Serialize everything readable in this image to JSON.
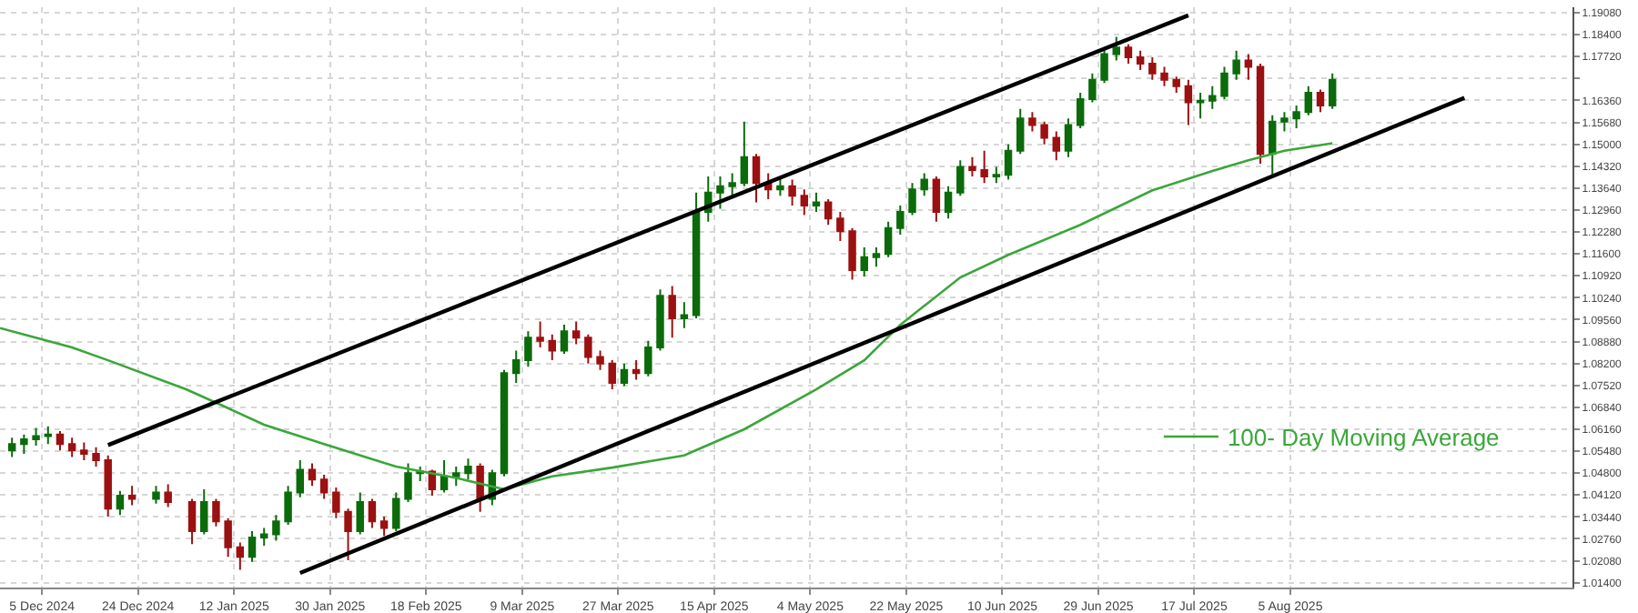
{
  "chart_data": {
    "type": "candlestick",
    "x": [
      "2024-11-29",
      "2024-12-02",
      "2024-12-04",
      "2024-12-06",
      "2024-12-09",
      "2024-12-11",
      "2024-12-13",
      "2024-12-16",
      "2024-12-18",
      "2024-12-20",
      "2024-12-23",
      "2024-12-27",
      "2024-12-30",
      "2025-01-03",
      "2025-01-06",
      "2025-01-08",
      "2025-01-10",
      "2025-01-13",
      "2025-01-15",
      "2025-01-17",
      "2025-01-20",
      "2025-01-22",
      "2025-01-24",
      "2025-01-27",
      "2025-01-29",
      "2025-01-31",
      "2025-02-03",
      "2025-02-05",
      "2025-02-07",
      "2025-02-10",
      "2025-02-12",
      "2025-02-14",
      "2025-02-17",
      "2025-02-19",
      "2025-02-21",
      "2025-02-24",
      "2025-02-26",
      "2025-02-28",
      "2025-03-03",
      "2025-03-05",
      "2025-03-07",
      "2025-03-10",
      "2025-03-12",
      "2025-03-14",
      "2025-03-17",
      "2025-03-19",
      "2025-03-21",
      "2025-03-24",
      "2025-03-26",
      "2025-03-28",
      "2025-03-31",
      "2025-04-02",
      "2025-04-04",
      "2025-04-07",
      "2025-04-09",
      "2025-04-11",
      "2025-04-14",
      "2025-04-16",
      "2025-04-18",
      "2025-04-21",
      "2025-04-23",
      "2025-04-25",
      "2025-04-28",
      "2025-04-30",
      "2025-05-02",
      "2025-05-05",
      "2025-05-07",
      "2025-05-09",
      "2025-05-12",
      "2025-05-14",
      "2025-05-16",
      "2025-05-19",
      "2025-05-21",
      "2025-05-23",
      "2025-05-26",
      "2025-05-28",
      "2025-05-30",
      "2025-06-02",
      "2025-06-04",
      "2025-06-06",
      "2025-06-09",
      "2025-06-11",
      "2025-06-13",
      "2025-06-16",
      "2025-06-18",
      "2025-06-20",
      "2025-06-23",
      "2025-06-25",
      "2025-06-27",
      "2025-06-30",
      "2025-07-02",
      "2025-07-04",
      "2025-07-07",
      "2025-07-09",
      "2025-07-11",
      "2025-07-14",
      "2025-07-16",
      "2025-07-18",
      "2025-07-21",
      "2025-07-23",
      "2025-07-25",
      "2025-07-28",
      "2025-07-30",
      "2025-08-01",
      "2025-08-04",
      "2025-08-06",
      "2025-08-08",
      "2025-08-11",
      "2025-08-13"
    ],
    "ohlc": [
      [
        1.055,
        1.059,
        1.053,
        1.057
      ],
      [
        1.057,
        1.06,
        1.054,
        1.0585
      ],
      [
        1.0585,
        1.062,
        1.0565,
        1.0595
      ],
      [
        1.0595,
        1.0625,
        1.057,
        1.06
      ],
      [
        1.06,
        1.061,
        1.055,
        1.057
      ],
      [
        1.057,
        1.059,
        1.053,
        1.055
      ],
      [
        1.055,
        1.0575,
        1.052,
        1.054
      ],
      [
        1.054,
        1.056,
        1.05,
        1.052
      ],
      [
        1.052,
        1.0535,
        1.0345,
        1.037
      ],
      [
        1.037,
        1.0425,
        1.035,
        1.041
      ],
      [
        1.041,
        1.044,
        1.038,
        1.04
      ],
      [
        1.04,
        1.044,
        1.0385,
        1.042
      ],
      [
        1.042,
        1.0445,
        1.0375,
        1.039
      ],
      [
        1.039,
        1.04,
        1.026,
        1.03
      ],
      [
        1.03,
        1.043,
        1.029,
        1.039
      ],
      [
        1.039,
        1.04,
        1.0315,
        1.033
      ],
      [
        1.033,
        1.034,
        1.022,
        1.025
      ],
      [
        1.025,
        1.0265,
        1.018,
        1.022
      ],
      [
        1.022,
        1.03,
        1.0205,
        1.028
      ],
      [
        1.028,
        1.031,
        1.0255,
        1.029
      ],
      [
        1.029,
        1.035,
        1.027,
        1.033
      ],
      [
        1.033,
        1.044,
        1.032,
        1.042
      ],
      [
        1.042,
        1.052,
        1.0405,
        1.049
      ],
      [
        1.049,
        1.051,
        1.044,
        1.046
      ],
      [
        1.046,
        1.0475,
        1.04,
        1.042
      ],
      [
        1.042,
        1.0435,
        1.034,
        1.036
      ],
      [
        1.036,
        1.037,
        1.021,
        1.03
      ],
      [
        1.03,
        1.042,
        1.029,
        1.039
      ],
      [
        1.039,
        1.04,
        1.031,
        1.033
      ],
      [
        1.033,
        1.0345,
        1.0285,
        1.031
      ],
      [
        1.031,
        1.042,
        1.03,
        1.04
      ],
      [
        1.04,
        1.051,
        1.039,
        1.048
      ],
      [
        1.048,
        1.05,
        1.0455,
        1.0485
      ],
      [
        1.0485,
        1.049,
        1.041,
        1.043
      ],
      [
        1.043,
        1.052,
        1.042,
        1.047
      ],
      [
        1.047,
        1.05,
        1.044,
        1.048
      ],
      [
        1.048,
        1.0525,
        1.046,
        1.05
      ],
      [
        1.05,
        1.051,
        1.036,
        1.04
      ],
      [
        1.04,
        1.049,
        1.038,
        1.048
      ],
      [
        1.048,
        1.08,
        1.047,
        1.079
      ],
      [
        1.079,
        1.086,
        1.076,
        1.083
      ],
      [
        1.083,
        1.092,
        1.081,
        1.09
      ],
      [
        1.09,
        1.095,
        1.087,
        1.089
      ],
      [
        1.089,
        1.091,
        1.083,
        1.086
      ],
      [
        1.086,
        1.094,
        1.085,
        1.092
      ],
      [
        1.092,
        1.095,
        1.088,
        1.09
      ],
      [
        1.09,
        1.091,
        1.082,
        1.084
      ],
      [
        1.084,
        1.086,
        1.08,
        1.082
      ],
      [
        1.082,
        1.083,
        1.074,
        1.076
      ],
      [
        1.076,
        1.082,
        1.075,
        1.08
      ],
      [
        1.08,
        1.083,
        1.077,
        1.079
      ],
      [
        1.079,
        1.089,
        1.078,
        1.087
      ],
      [
        1.087,
        1.105,
        1.086,
        1.103
      ],
      [
        1.103,
        1.106,
        1.09,
        1.096
      ],
      [
        1.096,
        1.101,
        1.093,
        1.097
      ],
      [
        1.097,
        1.135,
        1.096,
        1.129
      ],
      [
        1.129,
        1.14,
        1.126,
        1.135
      ],
      [
        1.135,
        1.14,
        1.13,
        1.137
      ],
      [
        1.137,
        1.141,
        1.134,
        1.138
      ],
      [
        1.138,
        1.157,
        1.137,
        1.146
      ],
      [
        1.146,
        1.147,
        1.132,
        1.138
      ],
      [
        1.138,
        1.141,
        1.133,
        1.136
      ],
      [
        1.136,
        1.14,
        1.134,
        1.137
      ],
      [
        1.137,
        1.139,
        1.131,
        1.134
      ],
      [
        1.134,
        1.136,
        1.128,
        1.131
      ],
      [
        1.131,
        1.135,
        1.129,
        1.132
      ],
      [
        1.132,
        1.133,
        1.125,
        1.127
      ],
      [
        1.127,
        1.129,
        1.12,
        1.123
      ],
      [
        1.123,
        1.124,
        1.108,
        1.111
      ],
      [
        1.111,
        1.118,
        1.109,
        1.115
      ],
      [
        1.115,
        1.118,
        1.112,
        1.116
      ],
      [
        1.116,
        1.126,
        1.115,
        1.124
      ],
      [
        1.124,
        1.131,
        1.122,
        1.129
      ],
      [
        1.129,
        1.138,
        1.128,
        1.136
      ],
      [
        1.136,
        1.141,
        1.134,
        1.139
      ],
      [
        1.139,
        1.14,
        1.126,
        1.129
      ],
      [
        1.129,
        1.137,
        1.127,
        1.135
      ],
      [
        1.135,
        1.145,
        1.134,
        1.143
      ],
      [
        1.143,
        1.146,
        1.14,
        1.142
      ],
      [
        1.142,
        1.148,
        1.138,
        1.14
      ],
      [
        1.14,
        1.143,
        1.138,
        1.1405
      ],
      [
        1.1405,
        1.15,
        1.139,
        1.148
      ],
      [
        1.148,
        1.161,
        1.147,
        1.158
      ],
      [
        1.158,
        1.16,
        1.154,
        1.156
      ],
      [
        1.156,
        1.157,
        1.15,
        1.152
      ],
      [
        1.152,
        1.154,
        1.145,
        1.148
      ],
      [
        1.148,
        1.158,
        1.146,
        1.156
      ],
      [
        1.156,
        1.166,
        1.155,
        1.164
      ],
      [
        1.164,
        1.172,
        1.163,
        1.17
      ],
      [
        1.17,
        1.18,
        1.169,
        1.178
      ],
      [
        1.178,
        1.1833,
        1.176,
        1.18
      ],
      [
        1.18,
        1.181,
        1.175,
        1.177
      ],
      [
        1.177,
        1.179,
        1.173,
        1.175
      ],
      [
        1.175,
        1.177,
        1.17,
        1.172
      ],
      [
        1.172,
        1.174,
        1.168,
        1.17
      ],
      [
        1.17,
        1.171,
        1.166,
        1.168
      ],
      [
        1.168,
        1.17,
        1.156,
        1.163
      ],
      [
        1.163,
        1.166,
        1.158,
        1.1635
      ],
      [
        1.1635,
        1.168,
        1.161,
        1.165
      ],
      [
        1.165,
        1.174,
        1.164,
        1.172
      ],
      [
        1.172,
        1.179,
        1.17,
        1.176
      ],
      [
        1.176,
        1.178,
        1.17,
        1.174
      ],
      [
        1.174,
        1.175,
        1.144,
        1.147
      ],
      [
        1.147,
        1.159,
        1.14,
        1.157
      ],
      [
        1.157,
        1.16,
        1.154,
        1.158
      ],
      [
        1.158,
        1.162,
        1.155,
        1.16
      ],
      [
        1.16,
        1.168,
        1.159,
        1.166
      ],
      [
        1.166,
        1.167,
        1.16,
        1.162
      ],
      [
        1.162,
        1.172,
        1.161,
        1.17
      ]
    ],
    "colors": [
      "#0b6b0b",
      "#0b6b0b",
      "#0b6b0b",
      "#0b6b0b",
      "#9b1111",
      "#9b1111",
      "#9b1111",
      "#9b1111",
      "#9b1111",
      "#0b6b0b",
      "#9b1111",
      "#0b6b0b",
      "#9b1111",
      "#9b1111",
      "#0b6b0b",
      "#9b1111",
      "#9b1111",
      "#9b1111",
      "#0b6b0b",
      "#0b6b0b",
      "#0b6b0b",
      "#0b6b0b",
      "#0b6b0b",
      "#9b1111",
      "#9b1111",
      "#9b1111",
      "#9b1111",
      "#0b6b0b",
      "#9b1111",
      "#9b1111",
      "#0b6b0b",
      "#0b6b0b",
      "#0b6b0b",
      "#9b1111",
      "#0b6b0b",
      "#0b6b0b",
      "#0b6b0b",
      "#9b1111",
      "#0b6b0b",
      "#0b6b0b",
      "#0b6b0b",
      "#0b6b0b",
      "#9b1111",
      "#9b1111",
      "#0b6b0b",
      "#9b1111",
      "#9b1111",
      "#9b1111",
      "#9b1111",
      "#0b6b0b",
      "#9b1111",
      "#0b6b0b",
      "#0b6b0b",
      "#9b1111",
      "#0b6b0b",
      "#0b6b0b",
      "#0b6b0b",
      "#0b6b0b",
      "#0b6b0b",
      "#0b6b0b",
      "#9b1111",
      "#9b1111",
      "#0b6b0b",
      "#9b1111",
      "#9b1111",
      "#0b6b0b",
      "#9b1111",
      "#9b1111",
      "#9b1111",
      "#0b6b0b",
      "#0b6b0b",
      "#0b6b0b",
      "#0b6b0b",
      "#0b6b0b",
      "#0b6b0b",
      "#9b1111",
      "#0b6b0b",
      "#0b6b0b",
      "#9b1111",
      "#9b1111",
      "#0b6b0b",
      "#0b6b0b",
      "#0b6b0b",
      "#9b1111",
      "#9b1111",
      "#9b1111",
      "#0b6b0b",
      "#0b6b0b",
      "#0b6b0b",
      "#0b6b0b",
      "#0b6b0b",
      "#9b1111",
      "#9b1111",
      "#9b1111",
      "#9b1111",
      "#9b1111",
      "#9b1111",
      "#0b6b0b",
      "#0b6b0b",
      "#0b6b0b",
      "#0b6b0b",
      "#9b1111",
      "#9b1111",
      "#0b6b0b",
      "#0b6b0b",
      "#0b6b0b",
      "#0b6b0b",
      "#9b1111",
      "#0b6b0b"
    ],
    "series": [
      {
        "type": "line",
        "name": "100- Day Moving Average",
        "color": "#3aa63a",
        "x": [
          "2024-11-27",
          "2024-12-11",
          "2024-12-18",
          "2025-01-02",
          "2025-01-09",
          "2025-01-17",
          "2025-01-29",
          "2025-02-12",
          "2025-02-24",
          "2025-03-05",
          "2025-03-14",
          "2025-03-26",
          "2025-04-09",
          "2025-04-21",
          "2025-05-05",
          "2025-05-14",
          "2025-05-21",
          "2025-06-02",
          "2025-06-11",
          "2025-06-25",
          "2025-07-09",
          "2025-07-21",
          "2025-07-28",
          "2025-08-04",
          "2025-08-13"
        ],
        "values": [
          1.093,
          1.087,
          1.083,
          1.074,
          1.069,
          1.063,
          1.057,
          1.05,
          1.0465,
          1.043,
          1.047,
          1.0497,
          1.0535,
          1.0616,
          1.074,
          1.083,
          1.094,
          1.1087,
          1.1157,
          1.125,
          1.1357,
          1.1417,
          1.145,
          1.148,
          1.1503
        ]
      },
      {
        "type": "line",
        "color": "#000000",
        "x": [
          "2024-12-18",
          "2025-07-16"
        ],
        "values": [
          1.0567,
          1.19
        ]
      },
      {
        "type": "line",
        "color": "#000000",
        "x": [
          "2025-01-24",
          "2025-09-08"
        ],
        "values": [
          1.017,
          1.1644
        ]
      }
    ],
    "xlim": [
      "2024-11-27",
      "2025-09-29"
    ],
    "xticks": [
      {
        "value": "2024-12-05",
        "label": "5 Dec 2024"
      },
      {
        "value": "2024-12-24",
        "label": "24 Dec 2024"
      },
      {
        "value": "2025-01-12",
        "label": "12 Jan 2025"
      },
      {
        "value": "2025-01-30",
        "label": "30 Jan 2025"
      },
      {
        "value": "2025-02-18",
        "label": "18 Feb 2025"
      },
      {
        "value": "2025-03-09",
        "label": "9 Mar 2025"
      },
      {
        "value": "2025-03-27",
        "label": "27 Mar 2025"
      },
      {
        "value": "2025-04-15",
        "label": "15 Apr 2025"
      },
      {
        "value": "2025-05-04",
        "label": "4 May 2025"
      },
      {
        "value": "2025-05-22",
        "label": "22 May 2025"
      },
      {
        "value": "2025-06-10",
        "label": "10 Jun 2025"
      },
      {
        "value": "2025-06-29",
        "label": "29 Jun 2025"
      },
      {
        "value": "2025-07-17",
        "label": "17 Jul 2025"
      },
      {
        "value": "2025-08-05",
        "label": "5 Aug 2025"
      }
    ],
    "ylim": [
      1.0125,
      1.1925
    ],
    "yticks": [
      {
        "value": 1.014,
        "label": "1.01400"
      },
      {
        "value": 1.0208,
        "label": "1.02080"
      },
      {
        "value": 1.0276,
        "label": "1.02760"
      },
      {
        "value": 1.0344,
        "label": "1.03440"
      },
      {
        "value": 1.0412,
        "label": "1.04120"
      },
      {
        "value": 1.048,
        "label": "1.04800"
      },
      {
        "value": 1.0548,
        "label": "1.05480"
      },
      {
        "value": 1.0616,
        "label": "1.06160"
      },
      {
        "value": 1.0684,
        "label": "1.06840"
      },
      {
        "value": 1.0752,
        "label": "1.07520"
      },
      {
        "value": 1.082,
        "label": "1.08200"
      },
      {
        "value": 1.0888,
        "label": "1.08880"
      },
      {
        "value": 1.0956,
        "label": "1.09560"
      },
      {
        "value": 1.1024,
        "label": "1.10240"
      },
      {
        "value": 1.1092,
        "label": "1.10920"
      },
      {
        "value": 1.116,
        "label": "1.11600"
      },
      {
        "value": 1.1228,
        "label": "1.12280"
      },
      {
        "value": 1.1296,
        "label": "1.12960"
      },
      {
        "value": 1.1364,
        "label": "1.13640"
      },
      {
        "value": 1.1432,
        "label": "1.14320"
      },
      {
        "value": 1.15,
        "label": "1.15000"
      },
      {
        "value": 1.1568,
        "label": "1.15680"
      },
      {
        "value": 1.1636,
        "label": "1.16360"
      },
      {
        "value": 1.1704,
        "label": null
      },
      {
        "value": 1.1772,
        "label": "1.17720"
      },
      {
        "value": 1.184,
        "label": "1.18400"
      },
      {
        "value": 1.1908,
        "label": "1.19080"
      }
    ],
    "grid": true,
    "legend": "bottom right"
  }
}
